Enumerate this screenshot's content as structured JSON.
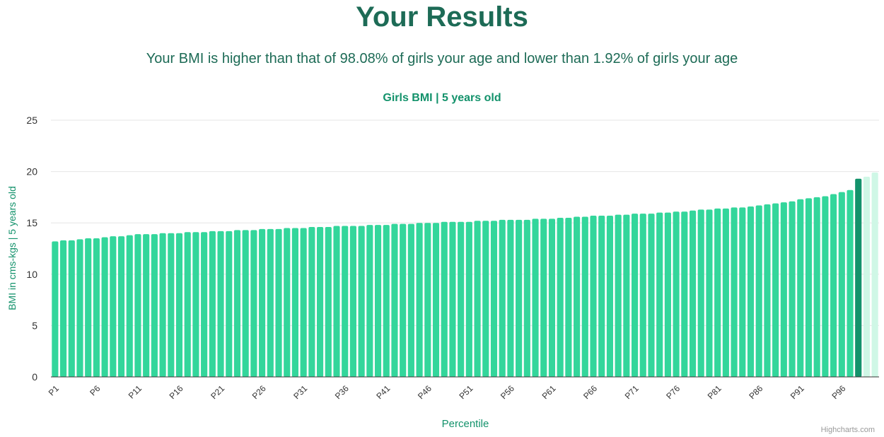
{
  "page": {
    "title": "Your Results",
    "summary": "Your BMI is higher than that of 98.08% of girls your age and lower than 1.92% of girls your age",
    "credit": "Highcharts.com"
  },
  "colors": {
    "bar": "#33d69b",
    "highlight": "#13926b",
    "faded": "#cff7e6",
    "title": "#1d6b56",
    "chart_title": "#13926b",
    "axis_label": "#13926b"
  },
  "chart_data": {
    "type": "bar",
    "title": "Girls BMI | 5 years old",
    "xlabel": "Percentile",
    "ylabel": "BMI in cms-kgs | 5 years old",
    "ylim": [
      0,
      25
    ],
    "yticks": [
      0,
      5,
      10,
      15,
      20,
      25
    ],
    "grid": true,
    "x_tick_labels": [
      "P1",
      "P6",
      "P11",
      "P16",
      "P21",
      "P26",
      "P31",
      "P36",
      "P41",
      "P46",
      "P51",
      "P56",
      "P61",
      "P66",
      "P71",
      "P76",
      "P81",
      "P86",
      "P91",
      "P96"
    ],
    "categories": [
      "P1",
      "P2",
      "P3",
      "P4",
      "P5",
      "P6",
      "P7",
      "P8",
      "P9",
      "P10",
      "P11",
      "P12",
      "P13",
      "P14",
      "P15",
      "P16",
      "P17",
      "P18",
      "P19",
      "P20",
      "P21",
      "P22",
      "P23",
      "P24",
      "P25",
      "P26",
      "P27",
      "P28",
      "P29",
      "P30",
      "P31",
      "P32",
      "P33",
      "P34",
      "P35",
      "P36",
      "P37",
      "P38",
      "P39",
      "P40",
      "P41",
      "P42",
      "P43",
      "P44",
      "P45",
      "P46",
      "P47",
      "P48",
      "P49",
      "P50",
      "P51",
      "P52",
      "P53",
      "P54",
      "P55",
      "P56",
      "P57",
      "P58",
      "P59",
      "P60",
      "P61",
      "P62",
      "P63",
      "P64",
      "P65",
      "P66",
      "P67",
      "P68",
      "P69",
      "P70",
      "P71",
      "P72",
      "P73",
      "P74",
      "P75",
      "P76",
      "P77",
      "P78",
      "P79",
      "P80",
      "P81",
      "P82",
      "P83",
      "P84",
      "P85",
      "P86",
      "P87",
      "P88",
      "P89",
      "P90",
      "P91",
      "P92",
      "P93",
      "P94",
      "P95",
      "P96",
      "P97",
      "P98",
      "P99",
      "P100"
    ],
    "values": [
      13.2,
      13.3,
      13.3,
      13.4,
      13.5,
      13.5,
      13.6,
      13.7,
      13.7,
      13.8,
      13.9,
      13.9,
      13.9,
      14.0,
      14.0,
      14.0,
      14.1,
      14.1,
      14.1,
      14.2,
      14.2,
      14.2,
      14.3,
      14.3,
      14.3,
      14.4,
      14.4,
      14.4,
      14.5,
      14.5,
      14.5,
      14.6,
      14.6,
      14.6,
      14.7,
      14.7,
      14.7,
      14.7,
      14.8,
      14.8,
      14.8,
      14.9,
      14.9,
      14.9,
      15.0,
      15.0,
      15.0,
      15.1,
      15.1,
      15.1,
      15.1,
      15.2,
      15.2,
      15.2,
      15.3,
      15.3,
      15.3,
      15.3,
      15.4,
      15.4,
      15.4,
      15.5,
      15.5,
      15.6,
      15.6,
      15.7,
      15.7,
      15.7,
      15.8,
      15.8,
      15.9,
      15.9,
      15.9,
      16.0,
      16.0,
      16.1,
      16.1,
      16.2,
      16.3,
      16.3,
      16.4,
      16.4,
      16.5,
      16.5,
      16.6,
      16.7,
      16.8,
      16.9,
      17.0,
      17.1,
      17.3,
      17.4,
      17.5,
      17.6,
      17.8,
      18.0,
      18.2,
      18.4,
      18.7,
      19.0
    ],
    "highlight_index": 97,
    "faded_indices": [
      98,
      99
    ],
    "plot_values_extra": [
      19.3,
      19.5,
      19.9
    ]
  }
}
